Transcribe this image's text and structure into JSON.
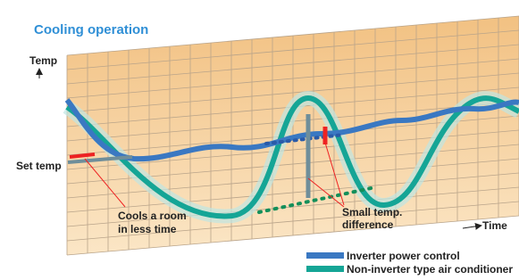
{
  "header": {
    "title": "Cooling operation"
  },
  "axes": {
    "y_label": "Temp",
    "x_label": "Time"
  },
  "labels": {
    "set_temp": "Set temp",
    "cools": [
      "Cools a room",
      "in less time"
    ],
    "small_diff": [
      "Small temp.",
      "difference"
    ]
  },
  "legend": [
    {
      "label": "Inverter power control",
      "color": "#3a78c2"
    },
    {
      "label": "Non-inverter type air conditioner",
      "color": "#15a596"
    }
  ]
}
